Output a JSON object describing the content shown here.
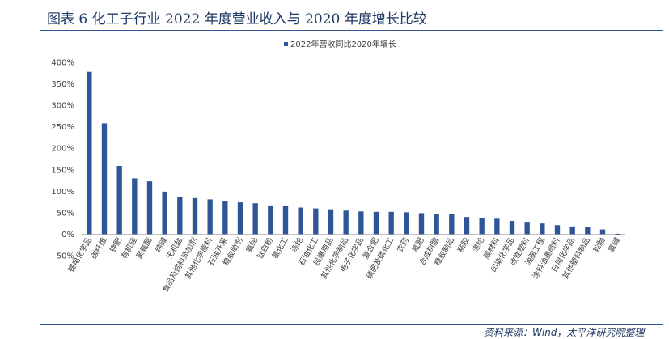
{
  "title": "图表 6 化工子行业 2022 年度营业收入与 2020 年度增长比较",
  "source": "资料来源：Wind，太平洋研究院整理",
  "chart_data": {
    "type": "bar",
    "categories": [
      "锂电化学品",
      "碳纤维",
      "钾肥",
      "有机硅",
      "聚氨酯",
      "纯碱",
      "无机盐",
      "食品及饲料添加剂",
      "其他化学原料",
      "石油开采",
      "橡胶助剂",
      "氨纶",
      "钛白粉",
      "氯化工",
      "涤纶",
      "石油化工",
      "民爆用品",
      "其他化学制品",
      "电子化学品",
      "复合肥",
      "磷肥及磷化工",
      "农药",
      "氮肥",
      "合成树脂",
      "橡胶制品",
      "粘胶",
      "涤纶",
      "膜材料",
      "印染化学品",
      "改性塑料",
      "油服工程",
      "涂料油墨颜料",
      "日用化学品",
      "其他塑料制品",
      "轮胎",
      "氯碱"
    ],
    "series": [
      {
        "name": "2022年营收同比2020年增长",
        "values": [
          3.78,
          2.58,
          1.59,
          1.3,
          1.23,
          0.99,
          0.86,
          0.84,
          0.81,
          0.76,
          0.74,
          0.72,
          0.67,
          0.65,
          0.62,
          0.6,
          0.58,
          0.55,
          0.53,
          0.52,
          0.52,
          0.51,
          0.49,
          0.47,
          0.46,
          0.4,
          0.38,
          0.36,
          0.31,
          0.27,
          0.25,
          0.21,
          0.18,
          0.17,
          0.11,
          0.01
        ]
      }
    ],
    "ylim": [
      -0.5,
      4.0
    ],
    "yticks": [
      -0.5,
      0,
      0.5,
      1.0,
      1.5,
      2.0,
      2.5,
      3.0,
      3.5,
      4.0
    ],
    "ytick_labels": [
      "-50%",
      "0%",
      "50%",
      "100%",
      "150%",
      "200%",
      "250%",
      "300%",
      "350%",
      "400%"
    ],
    "legend_position": "top-center",
    "grid": false,
    "colors": {
      "bar": "#2f5597"
    }
  }
}
